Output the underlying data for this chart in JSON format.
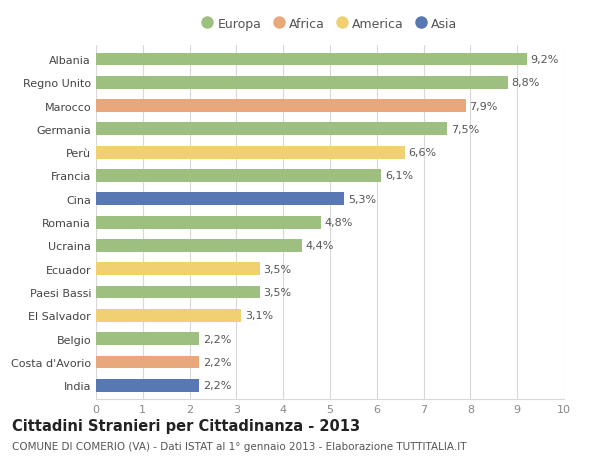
{
  "categories": [
    "Albania",
    "Regno Unito",
    "Marocco",
    "Germania",
    "Perù",
    "Francia",
    "Cina",
    "Romania",
    "Ucraina",
    "Ecuador",
    "Paesi Bassi",
    "El Salvador",
    "Belgio",
    "Costa d'Avorio",
    "India"
  ],
  "values": [
    9.2,
    8.8,
    7.9,
    7.5,
    6.6,
    6.1,
    5.3,
    4.8,
    4.4,
    3.5,
    3.5,
    3.1,
    2.2,
    2.2,
    2.2
  ],
  "labels": [
    "9,2%",
    "8,8%",
    "7,9%",
    "7,5%",
    "6,6%",
    "6,1%",
    "5,3%",
    "4,8%",
    "4,4%",
    "3,5%",
    "3,5%",
    "3,1%",
    "2,2%",
    "2,2%",
    "2,2%"
  ],
  "continent": [
    "Europa",
    "Europa",
    "Africa",
    "Europa",
    "America",
    "Europa",
    "Asia",
    "Europa",
    "Europa",
    "America",
    "Europa",
    "America",
    "Europa",
    "Africa",
    "Asia"
  ],
  "colors": {
    "Europa": "#9dc080",
    "Africa": "#e8a87c",
    "America": "#f0d070",
    "Asia": "#5878b4"
  },
  "legend_order": [
    "Europa",
    "Africa",
    "America",
    "Asia"
  ],
  "xlim": [
    0,
    10
  ],
  "xticks": [
    0,
    1,
    2,
    3,
    4,
    5,
    6,
    7,
    8,
    9,
    10
  ],
  "title": "Cittadini Stranieri per Cittadinanza - 2013",
  "subtitle": "COMUNE DI COMERIO (VA) - Dati ISTAT al 1° gennaio 2013 - Elaborazione TUTTITALIA.IT",
  "background_color": "#ffffff",
  "grid_color": "#d8d8d8",
  "bar_height": 0.55,
  "label_fontsize": 8.0,
  "tick_fontsize": 8.0,
  "title_fontsize": 10.5,
  "subtitle_fontsize": 7.5,
  "legend_fontsize": 9.0
}
